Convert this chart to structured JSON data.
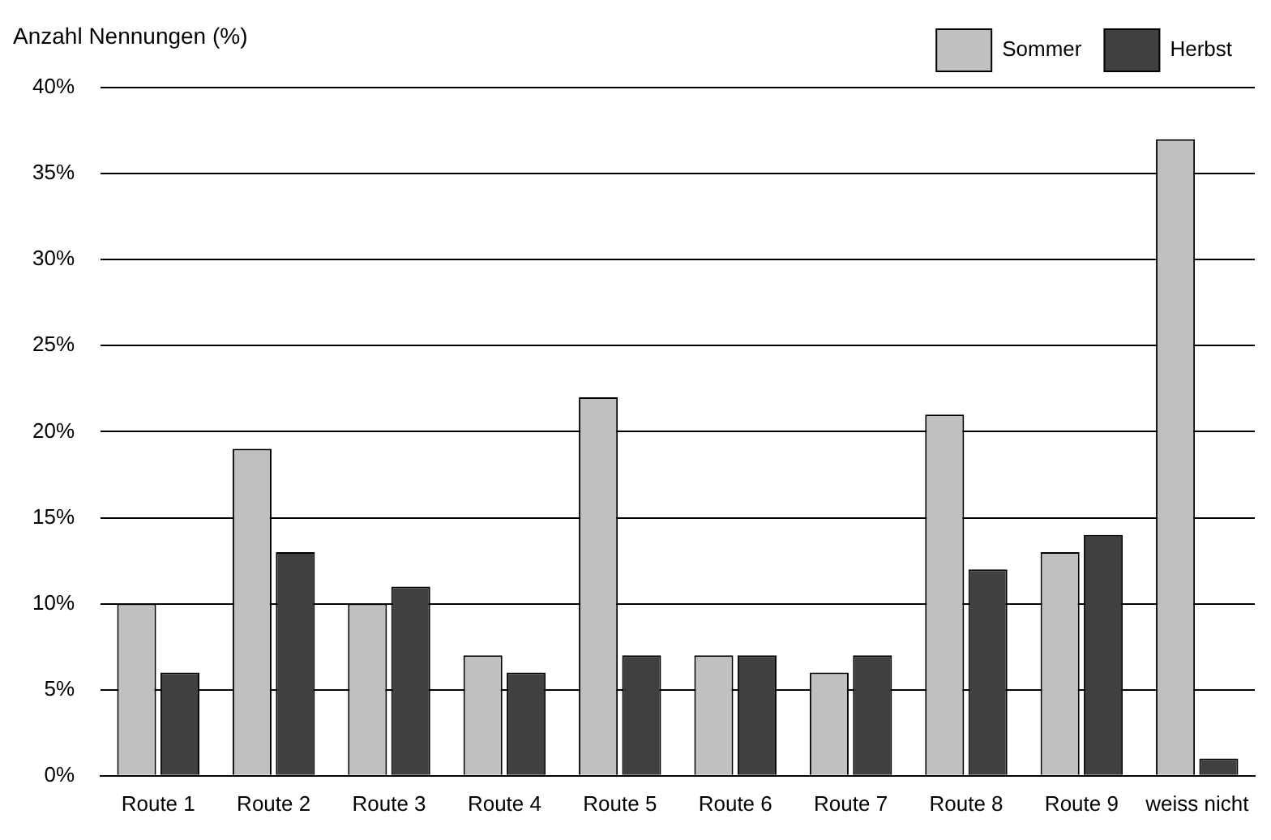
{
  "chart_data": {
    "type": "bar",
    "ylabel": "Anzahl Nennungen (%)",
    "categories": [
      "Route 1",
      "Route 2",
      "Route 3",
      "Route 4",
      "Route 5",
      "Route 6",
      "Route 7",
      "Route 8",
      "Route 9",
      "weiss nicht"
    ],
    "series": [
      {
        "name": "Sommer",
        "color": "#c0c0c0",
        "values": [
          10,
          19,
          10,
          7,
          22,
          7,
          6,
          21,
          13,
          37
        ]
      },
      {
        "name": "Herbst",
        "color": "#404040",
        "values": [
          6,
          13,
          11,
          6,
          7,
          7,
          7,
          12,
          14,
          1
        ]
      }
    ],
    "ylim": [
      0,
      40
    ],
    "yticks": [
      {
        "value": 0,
        "label": "0%"
      },
      {
        "value": 5,
        "label": "5%"
      },
      {
        "value": 10,
        "label": "10%"
      },
      {
        "value": 15,
        "label": "15%"
      },
      {
        "value": 20,
        "label": "20%"
      },
      {
        "value": 25,
        "label": "25%"
      },
      {
        "value": 30,
        "label": "30%"
      },
      {
        "value": 35,
        "label": "35%"
      },
      {
        "value": 40,
        "label": "40%"
      }
    ],
    "grid": "y",
    "legend": "top right"
  }
}
